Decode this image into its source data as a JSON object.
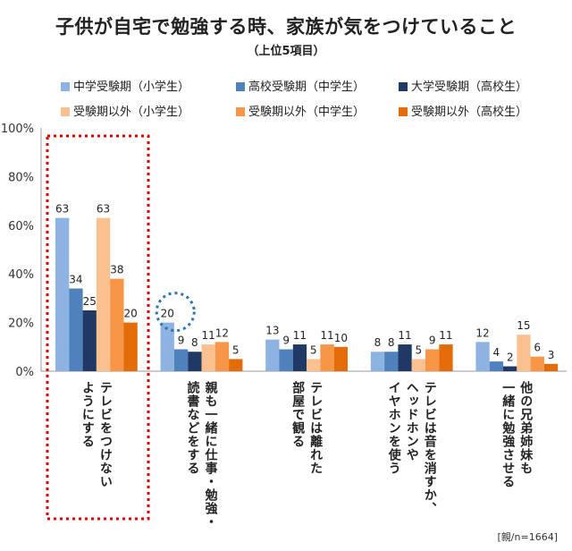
{
  "chart_data": {
    "type": "bar",
    "title": "子供が自宅で勉強する時、家族が気をつけていること",
    "subtitle": "（上位5項目）",
    "ylim": [
      0,
      100
    ],
    "yticks": [
      "0%",
      "20%",
      "40%",
      "60%",
      "80%",
      "100%"
    ],
    "categories": [
      [
        "テレビをつけない",
        "ようにする"
      ],
      [
        "親も一緒に仕事・勉強・",
        "読書などをする"
      ],
      [
        "テレビは離れた",
        "部屋で観る"
      ],
      [
        "テレビは音を消すか、",
        "ヘッドホンや",
        "イヤホンを使う"
      ],
      [
        "他の兄弟姉妹も",
        "一緒に勉強させる"
      ]
    ],
    "series": [
      {
        "name": "中学受験期（小学生）",
        "color": "#8db3e2",
        "values": [
          63,
          20,
          13,
          8,
          12
        ]
      },
      {
        "name": "高校受験期（中学生）",
        "color": "#4f81bd",
        "values": [
          34,
          9,
          9,
          8,
          4
        ]
      },
      {
        "name": "大学受験期（高校生）",
        "color": "#1f3864",
        "values": [
          25,
          8,
          11,
          11,
          2
        ]
      },
      {
        "name": "受験期以外（小学生）",
        "color": "#fac090",
        "values": [
          63,
          11,
          5,
          5,
          15
        ]
      },
      {
        "name": "受験期以外（中学生）",
        "color": "#f79646",
        "values": [
          38,
          12,
          11,
          9,
          6
        ]
      },
      {
        "name": "受験期以外（高校生）",
        "color": "#e36c09",
        "values": [
          20,
          5,
          10,
          11,
          3
        ]
      }
    ],
    "note": "[親/n=1664]"
  }
}
